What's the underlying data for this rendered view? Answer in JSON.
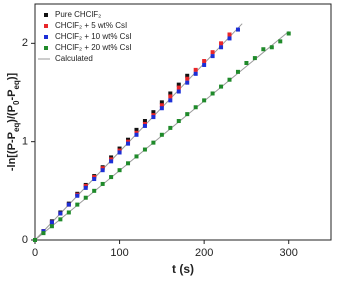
{
  "chart_data": {
    "type": "scatter",
    "xlabel": "t (s)",
    "ylabel_parts": [
      {
        "text": "-ln[(P-P"
      },
      {
        "text": "eq",
        "sub": true
      },
      {
        "text": ")/(P"
      },
      {
        "text": "0",
        "sub": true
      },
      {
        "text": "-P"
      },
      {
        "text": "eq",
        "sub": true
      },
      {
        "text": ")]"
      }
    ],
    "xlim": [
      0,
      350
    ],
    "xticks": [
      0,
      100,
      200,
      300
    ],
    "ylim": [
      0,
      2.4
    ],
    "yticks": [
      0,
      1,
      2
    ],
    "legend": "upper left",
    "series": [
      {
        "name": "Pure CHClF₂",
        "color": "#111111",
        "x": [
          0,
          10,
          20,
          30,
          40,
          50,
          60,
          70,
          80,
          90,
          100,
          110,
          120,
          130,
          140,
          150,
          160,
          170,
          180
        ],
        "values": [
          0,
          0.09,
          0.19,
          0.28,
          0.37,
          0.47,
          0.56,
          0.65,
          0.74,
          0.84,
          0.93,
          1.02,
          1.12,
          1.21,
          1.3,
          1.4,
          1.49,
          1.58,
          1.67
        ]
      },
      {
        "name": "CHClF₂ + 5 wt% CsI",
        "color": "#e8262a",
        "x": [
          0,
          10,
          20,
          30,
          40,
          50,
          60,
          70,
          80,
          90,
          100,
          110,
          120,
          130,
          140,
          150,
          160,
          170,
          180,
          190,
          200,
          210,
          220,
          230
        ],
        "values": [
          0,
          0.09,
          0.18,
          0.27,
          0.36,
          0.46,
          0.55,
          0.64,
          0.73,
          0.82,
          0.91,
          1.0,
          1.09,
          1.18,
          1.27,
          1.37,
          1.46,
          1.55,
          1.64,
          1.73,
          1.82,
          1.91,
          2.0,
          2.09
        ]
      },
      {
        "name": "CHClF₂ + 10 wt% CsI",
        "color": "#1c2fd6",
        "x": [
          0,
          10,
          20,
          30,
          40,
          50,
          60,
          70,
          80,
          90,
          100,
          110,
          120,
          130,
          140,
          150,
          160,
          170,
          180,
          190,
          200,
          210,
          220,
          230,
          240
        ],
        "values": [
          0,
          0.09,
          0.18,
          0.27,
          0.36,
          0.45,
          0.53,
          0.62,
          0.71,
          0.8,
          0.89,
          0.98,
          1.07,
          1.16,
          1.25,
          1.34,
          1.42,
          1.51,
          1.6,
          1.69,
          1.78,
          1.87,
          1.96,
          2.05,
          2.14
        ]
      },
      {
        "name": "CHClF₂ + 20 wt% CsI",
        "color": "#1f8a2a",
        "x": [
          0,
          10,
          20,
          30,
          40,
          50,
          60,
          70,
          80,
          90,
          100,
          110,
          120,
          130,
          140,
          150,
          160,
          170,
          180,
          190,
          200,
          210,
          220,
          230,
          240,
          250,
          260,
          270,
          280,
          290,
          300
        ],
        "values": [
          0,
          0.07,
          0.14,
          0.21,
          0.28,
          0.36,
          0.43,
          0.5,
          0.57,
          0.64,
          0.71,
          0.78,
          0.85,
          0.92,
          0.99,
          1.07,
          1.14,
          1.21,
          1.28,
          1.35,
          1.42,
          1.49,
          1.56,
          1.63,
          1.71,
          1.8,
          1.85,
          1.94,
          1.96,
          2.02,
          2.1
        ]
      }
    ],
    "calculated": {
      "name": "Calculated",
      "color": "#9a9a9a",
      "lines": [
        {
          "x": [
            0,
            245
          ],
          "values": [
            0,
            2.2
          ]
        },
        {
          "x": [
            0,
            300
          ],
          "values": [
            0,
            2.12
          ]
        }
      ]
    }
  }
}
